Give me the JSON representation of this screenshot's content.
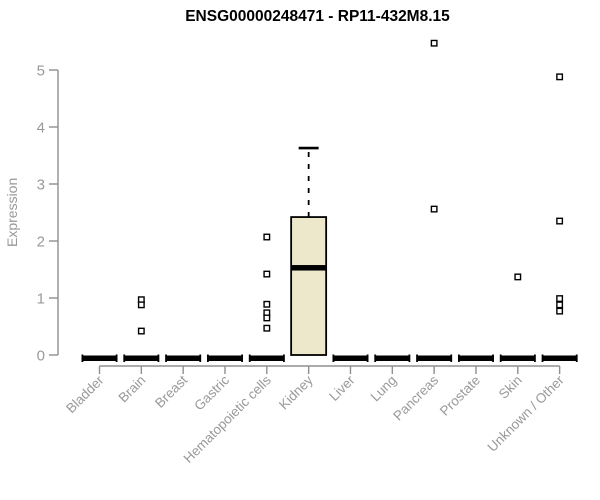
{
  "chart_data": {
    "type": "boxplot",
    "title": "ENSG00000248471 - RP11-432M8.15",
    "ylabel": "Expression",
    "xlabel": "",
    "ylim": [
      0,
      5
    ],
    "yticks": [
      0,
      1,
      2,
      3,
      4,
      5
    ],
    "grid": false,
    "legend_position": "none",
    "categories": [
      "Bladder",
      "Brain",
      "Breast",
      "Gastric",
      "Hematopoietic cells",
      "Kidney",
      "Liver",
      "Lung",
      "Pancreas",
      "Prostate",
      "Skin",
      "Unknown / Other"
    ],
    "boxes": [
      {
        "category": "Bladder",
        "q1": 0,
        "median": 0,
        "q3": 0,
        "whisker_low": 0,
        "whisker_high": 0,
        "outliers": []
      },
      {
        "category": "Brain",
        "q1": 0,
        "median": 0,
        "q3": 0,
        "whisker_low": 0,
        "whisker_high": 0,
        "outliers": [
          0.97,
          0.88,
          0.42
        ]
      },
      {
        "category": "Breast",
        "q1": 0,
        "median": 0,
        "q3": 0,
        "whisker_low": 0,
        "whisker_high": 0,
        "outliers": []
      },
      {
        "category": "Gastric",
        "q1": 0,
        "median": 0,
        "q3": 0,
        "whisker_low": 0,
        "whisker_high": 0,
        "outliers": []
      },
      {
        "category": "Hematopoietic cells",
        "q1": 0,
        "median": 0,
        "q3": 0,
        "whisker_low": 0,
        "whisker_high": 0,
        "outliers": [
          2.07,
          1.42,
          0.89,
          0.74,
          0.65,
          0.47
        ]
      },
      {
        "category": "Kidney",
        "q1": 0,
        "median": 1.53,
        "q3": 2.42,
        "whisker_low": 0,
        "whisker_high": 3.63,
        "outliers": []
      },
      {
        "category": "Liver",
        "q1": 0,
        "median": 0,
        "q3": 0,
        "whisker_low": 0,
        "whisker_high": 0,
        "outliers": []
      },
      {
        "category": "Lung",
        "q1": 0,
        "median": 0,
        "q3": 0,
        "whisker_low": 0,
        "whisker_high": 0,
        "outliers": []
      },
      {
        "category": "Pancreas",
        "q1": 0,
        "median": 0,
        "q3": 0,
        "whisker_low": 0,
        "whisker_high": 0,
        "outliers": [
          5.47,
          2.56
        ]
      },
      {
        "category": "Prostate",
        "q1": 0,
        "median": 0,
        "q3": 0,
        "whisker_low": 0,
        "whisker_high": 0,
        "outliers": []
      },
      {
        "category": "Skin",
        "q1": 0,
        "median": 0,
        "q3": 0,
        "whisker_low": 0,
        "whisker_high": 0,
        "outliers": [
          1.37
        ]
      },
      {
        "category": "Unknown / Other",
        "q1": 0,
        "median": 0,
        "q3": 0,
        "whisker_low": 0,
        "whisker_high": 0,
        "outliers": [
          4.88,
          2.35,
          0.99,
          0.88,
          0.77
        ]
      }
    ],
    "colors": {
      "box_fill": "#EDE8CC",
      "box_stroke": "#000000",
      "median": "#000000",
      "outlier_stroke": "#000000",
      "outlier_fill": "#ffffff",
      "axis": "#8f8f8f",
      "tick_label": "#999999",
      "title": "#000000",
      "background": "#ffffff"
    }
  }
}
